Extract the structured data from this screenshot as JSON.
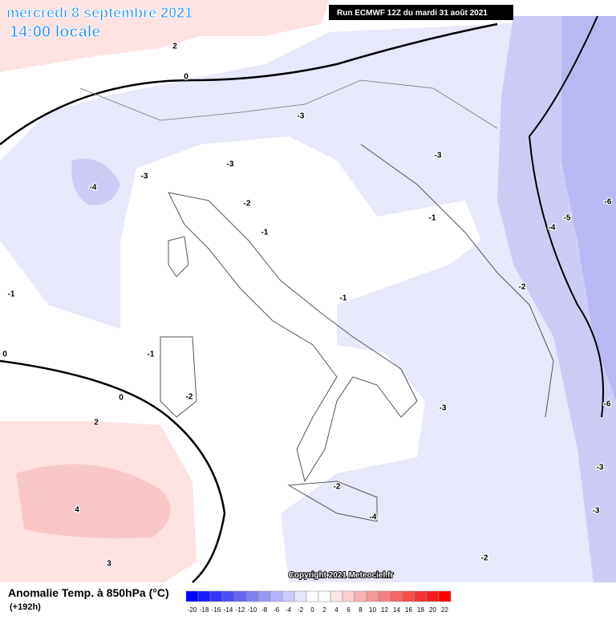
{
  "header": {
    "date": "mercredi 8 septembre 2021",
    "time": "14:00 locale",
    "run": "Run ECMWF 12Z du mardi 31 août 2021"
  },
  "copyright": "Copyright 2021 Meteociel.fr",
  "contour_labels": [
    "2",
    "0",
    "-3",
    "-3",
    "-4",
    "-3",
    "-2",
    "-1",
    "-1",
    "-3",
    "-6",
    "-5",
    "-4",
    "-2",
    "-1",
    "-1",
    "-1",
    "0",
    "0",
    "-2",
    "2",
    "-3",
    "-6",
    "-3",
    "-2",
    "-4",
    "4",
    "-3",
    "3",
    "-2"
  ],
  "legend": {
    "title": "Anomalie Temp. à 850hPa (°C)",
    "lead": "(+192h)",
    "ticks": [
      -20,
      -18,
      -16,
      -14,
      -12,
      -10,
      -8,
      -6,
      -4,
      -2,
      0,
      2,
      4,
      6,
      8,
      10,
      12,
      14,
      16,
      18,
      20,
      22
    ],
    "colors": [
      "#0000ff",
      "#1a1aff",
      "#3333ff",
      "#4d4df5",
      "#6666f0",
      "#8080f0",
      "#9999f5",
      "#b3b3f8",
      "#ccccfa",
      "#e6e6fc",
      "#ffffff",
      "#ffffff",
      "#fce6e6",
      "#fad0d0",
      "#f8b3b3",
      "#f59999",
      "#f58080",
      "#f56666",
      "#f54d4d",
      "#f53333",
      "#f51a1a",
      "#ff0000"
    ]
  }
}
